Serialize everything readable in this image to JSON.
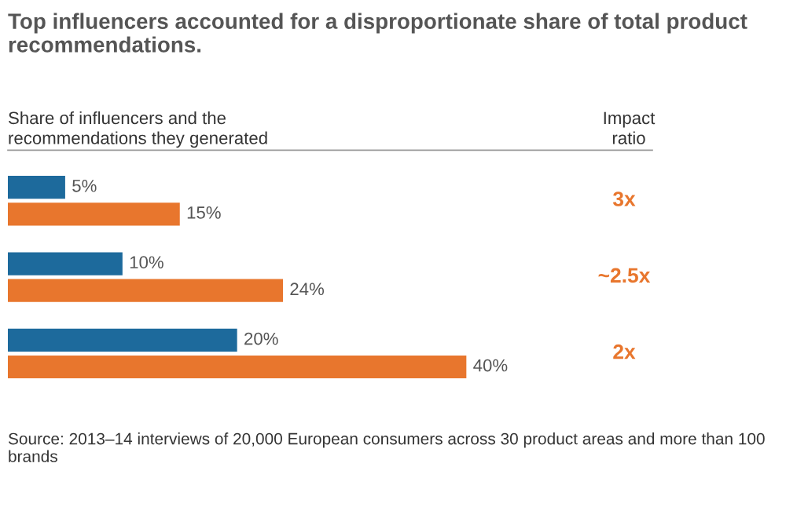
{
  "chart_data": {
    "type": "bar",
    "orientation": "horizontal",
    "title": "Top influencers accounted for a disproportionate share of total product recommendations.",
    "subtitle": "Share of influencers and the recommendations they generated",
    "categories": [
      null,
      null,
      null
    ],
    "series": [
      {
        "color": "#1d6a9c",
        "values": [
          5,
          10,
          20
        ],
        "value_labels": [
          "5%",
          "10%",
          "20%"
        ]
      },
      {
        "color": "#e8762d",
        "values": [
          15,
          24,
          40
        ],
        "value_labels": [
          "15%",
          "24%",
          "40%"
        ]
      }
    ],
    "tick_labels": false,
    "grid": false,
    "annotations": [
      "Impact ratio",
      "3x",
      "~2.5x",
      "2x",
      "Source: 2013–14 interviews of 20,000 European consumers across 30 product areas and more than 100 brands"
    ]
  }
}
